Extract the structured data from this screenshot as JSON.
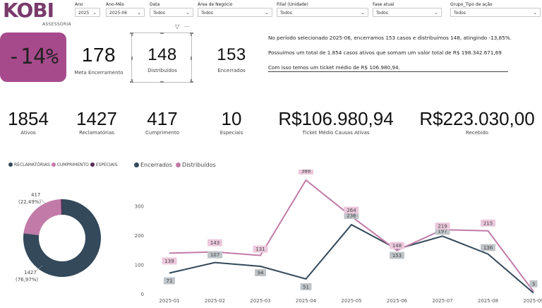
{
  "logo": {
    "main": "KOBI",
    "sub": "ASSESSORIA"
  },
  "filters": [
    {
      "label": "Ano",
      "value": "2025"
    },
    {
      "label": "Ano-Mês",
      "value": "2025-06"
    },
    {
      "label": "Data",
      "value": "Todos"
    },
    {
      "label": "Área de Negócio",
      "value": "Todos"
    },
    {
      "label": "Filial (Unidade)",
      "value": "Todos"
    },
    {
      "label": "Fase atual",
      "value": "Todos"
    },
    {
      "label": "Grupo_Tipo de ação",
      "value": "Todos"
    }
  ],
  "kpis_top": {
    "variation": "-14%",
    "meta": {
      "value": "178",
      "label": "Meta Encerramento"
    },
    "distribuidos": {
      "value": "148",
      "label": "Distribuídos"
    },
    "encerrados": {
      "value": "153",
      "label": "Encerrados"
    }
  },
  "summary": {
    "line1": "No período selecionado 2025-06, encerramos 153 casos e distribuímos 148, atingindo -13,85%.",
    "line2": "Possuímos um total de 1.854 casos ativos que somam um valor total de R$ 198.342.671,69",
    "line3": "Com isso temos um ticket médio de R$ 106.980,94."
  },
  "kpis_mid": [
    {
      "value": "1854",
      "label": "Ativos"
    },
    {
      "value": "1427",
      "label": "Reclamatórias"
    },
    {
      "value": "417",
      "label": "Cumprimento"
    },
    {
      "value": "10",
      "label": "Especiais"
    },
    {
      "value": "R$106.980,94",
      "label": "Ticket Médio Causas Ativas"
    },
    {
      "value": "R$223.030,00",
      "label": "Recebido"
    }
  ],
  "colors": {
    "accent": "#a74a8c",
    "dark": "#34495a",
    "pink": "#c27ba8",
    "light_pink": "#d99cc4"
  },
  "chart_data": [
    {
      "type": "pie",
      "legend": [
        "RECLAMATÓRIAS",
        "CUMPRIMENTO",
        "ESPECIAIS"
      ],
      "slices": [
        {
          "name": "RECLAMATÓRIAS",
          "value": 1427,
          "label": "1427",
          "pct": "(76,97%)",
          "color": "#34495a"
        },
        {
          "name": "CUMPRIMENTO",
          "value": 417,
          "label": "417",
          "pct": "(22,49%)",
          "color": "#c27ba8"
        },
        {
          "name": "ESPECIAIS",
          "value": 10,
          "label": "",
          "pct": "",
          "color": "#5a2c58"
        }
      ]
    },
    {
      "type": "line",
      "legend": [
        "Encerrados",
        "Distribuídos"
      ],
      "categories": [
        "2025-01",
        "2025-02",
        "2025-03",
        "2025-04",
        "2025-05",
        "2025-06",
        "2025-07",
        "2025-08",
        "2025-09"
      ],
      "series": [
        {
          "name": "Encerrados",
          "color": "#34495a",
          "values": [
            71,
            107,
            94,
            51,
            236,
            153,
            197,
            136,
            3
          ]
        },
        {
          "name": "Distribuídos",
          "color": "#c27ba8",
          "values": [
            139,
            143,
            131,
            388,
            264,
            148,
            219,
            215,
            8
          ]
        }
      ],
      "ylim": [
        0,
        400
      ],
      "yticks": [
        "0",
        "100",
        "200",
        "300"
      ],
      "point_labels": {
        "Encerrados": [
          "71",
          "107",
          "94",
          "51",
          "236",
          "153",
          "197",
          "136",
          "3"
        ],
        "Distribuídos": [
          "139",
          "143",
          "131",
          "388",
          "264",
          "148",
          "219",
          "215",
          ""
        ]
      }
    }
  ]
}
